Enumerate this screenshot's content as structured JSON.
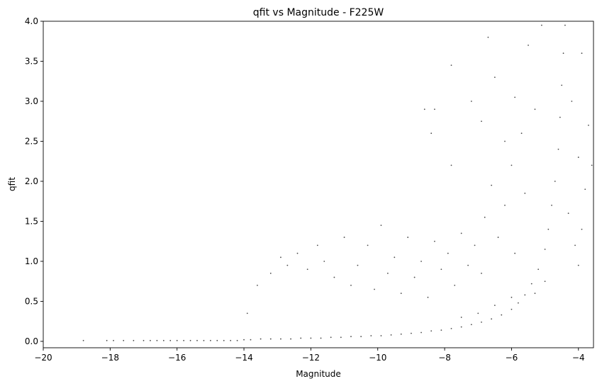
{
  "chart_data": {
    "type": "scatter",
    "title": "qfit vs Magnitude - F225W",
    "xlabel": "Magnitude",
    "ylabel": "qfit",
    "xlim": [
      -20,
      -3.55
    ],
    "ylim": [
      -0.08,
      4.0
    ],
    "grid": false,
    "point_color": "#000000",
    "x_ticks": [
      -20,
      -18,
      -16,
      -14,
      -12,
      -10,
      -8,
      -6,
      -4
    ],
    "x_tick_labels": [
      "−20",
      "−18",
      "−16",
      "−14",
      "−12",
      "−10",
      "−8",
      "−6",
      "−4"
    ],
    "y_ticks": [
      0.0,
      0.5,
      1.0,
      1.5,
      2.0,
      2.5,
      3.0,
      3.5,
      4.0
    ],
    "y_tick_labels": [
      "0.0",
      "0.5",
      "1.0",
      "1.5",
      "2.0",
      "2.5",
      "3.0",
      "3.5",
      "4.0"
    ],
    "points": [
      [
        -18.8,
        0.01
      ],
      [
        -18.1,
        0.01
      ],
      [
        -17.9,
        0.01
      ],
      [
        -17.6,
        0.01
      ],
      [
        -17.3,
        0.01
      ],
      [
        -17.0,
        0.01
      ],
      [
        -16.8,
        0.01
      ],
      [
        -16.6,
        0.01
      ],
      [
        -16.4,
        0.01
      ],
      [
        -16.2,
        0.01
      ],
      [
        -16.0,
        0.01
      ],
      [
        -15.8,
        0.01
      ],
      [
        -15.6,
        0.01
      ],
      [
        -15.4,
        0.01
      ],
      [
        -15.2,
        0.01
      ],
      [
        -15.0,
        0.01
      ],
      [
        -14.8,
        0.01
      ],
      [
        -14.6,
        0.01
      ],
      [
        -14.4,
        0.01
      ],
      [
        -14.2,
        0.01
      ],
      [
        -14.0,
        0.02
      ],
      [
        -13.8,
        0.02
      ],
      [
        -13.5,
        0.03
      ],
      [
        -13.2,
        0.03
      ],
      [
        -12.9,
        0.03
      ],
      [
        -12.6,
        0.03
      ],
      [
        -12.3,
        0.04
      ],
      [
        -12.0,
        0.04
      ],
      [
        -11.7,
        0.04
      ],
      [
        -11.4,
        0.05
      ],
      [
        -11.1,
        0.05
      ],
      [
        -10.8,
        0.06
      ],
      [
        -10.5,
        0.06
      ],
      [
        -10.2,
        0.07
      ],
      [
        -9.9,
        0.07
      ],
      [
        -9.6,
        0.08
      ],
      [
        -9.3,
        0.09
      ],
      [
        -9.0,
        0.1
      ],
      [
        -8.7,
        0.11
      ],
      [
        -8.4,
        0.13
      ],
      [
        -8.1,
        0.14
      ],
      [
        -7.8,
        0.16
      ],
      [
        -7.5,
        0.18
      ],
      [
        -7.2,
        0.21
      ],
      [
        -6.9,
        0.24
      ],
      [
        -6.6,
        0.28
      ],
      [
        -6.3,
        0.33
      ],
      [
        -6.0,
        0.4
      ],
      [
        -5.8,
        0.48
      ],
      [
        -5.6,
        0.58
      ],
      [
        -5.4,
        0.72
      ],
      [
        -5.2,
        0.9
      ],
      [
        -5.0,
        1.15
      ],
      [
        -4.9,
        1.4
      ],
      [
        -4.8,
        1.7
      ],
      [
        -4.7,
        2.0
      ],
      [
        -4.6,
        2.4
      ],
      [
        -4.55,
        2.8
      ],
      [
        -4.5,
        3.2
      ],
      [
        -4.45,
        3.6
      ],
      [
        -4.4,
        3.95
      ],
      [
        -13.9,
        0.35
      ],
      [
        -13.6,
        0.7
      ],
      [
        -13.2,
        0.85
      ],
      [
        -12.9,
        1.05
      ],
      [
        -12.7,
        0.95
      ],
      [
        -12.4,
        1.1
      ],
      [
        -12.1,
        0.9
      ],
      [
        -11.8,
        1.2
      ],
      [
        -11.6,
        1.0
      ],
      [
        -11.3,
        0.8
      ],
      [
        -11.0,
        1.3
      ],
      [
        -10.8,
        0.7
      ],
      [
        -10.6,
        0.95
      ],
      [
        -10.3,
        1.2
      ],
      [
        -10.1,
        0.65
      ],
      [
        -9.9,
        1.45
      ],
      [
        -9.7,
        0.85
      ],
      [
        -9.5,
        1.05
      ],
      [
        -9.3,
        0.6
      ],
      [
        -9.1,
        1.3
      ],
      [
        -8.9,
        0.8
      ],
      [
        -8.7,
        1.0
      ],
      [
        -8.5,
        0.55
      ],
      [
        -8.3,
        1.25
      ],
      [
        -8.1,
        0.9
      ],
      [
        -7.9,
        1.1
      ],
      [
        -7.7,
        0.7
      ],
      [
        -7.5,
        1.35
      ],
      [
        -7.3,
        0.95
      ],
      [
        -7.1,
        1.2
      ],
      [
        -6.9,
        0.85
      ],
      [
        -8.6,
        2.9
      ],
      [
        -8.3,
        2.9
      ],
      [
        -8.4,
        2.6
      ],
      [
        -7.8,
        2.2
      ],
      [
        -7.8,
        3.45
      ],
      [
        -7.2,
        3.0
      ],
      [
        -6.9,
        2.75
      ],
      [
        -6.7,
        3.8
      ],
      [
        -6.5,
        3.3
      ],
      [
        -6.2,
        2.5
      ],
      [
        -6.0,
        2.2
      ],
      [
        -5.9,
        3.05
      ],
      [
        -5.7,
        2.6
      ],
      [
        -5.5,
        3.7
      ],
      [
        -5.3,
        2.9
      ],
      [
        -5.1,
        3.95
      ],
      [
        -4.2,
        3.0
      ],
      [
        -4.0,
        2.3
      ],
      [
        -3.9,
        3.6
      ],
      [
        -3.8,
        1.9
      ],
      [
        -3.7,
        2.7
      ],
      [
        -3.6,
        2.2
      ],
      [
        -4.3,
        1.6
      ],
      [
        -4.1,
        1.2
      ],
      [
        -4.0,
        0.95
      ],
      [
        -3.9,
        1.4
      ],
      [
        -5.9,
        1.1
      ],
      [
        -6.2,
        1.7
      ],
      [
        -6.4,
        1.3
      ],
      [
        -6.6,
        1.95
      ],
      [
        -6.8,
        1.55
      ],
      [
        -5.6,
        1.85
      ],
      [
        -6.0,
        0.55
      ],
      [
        -6.5,
        0.45
      ],
      [
        -7.0,
        0.35
      ],
      [
        -7.5,
        0.3
      ],
      [
        -5.3,
        0.6
      ],
      [
        -5.0,
        0.75
      ]
    ]
  }
}
